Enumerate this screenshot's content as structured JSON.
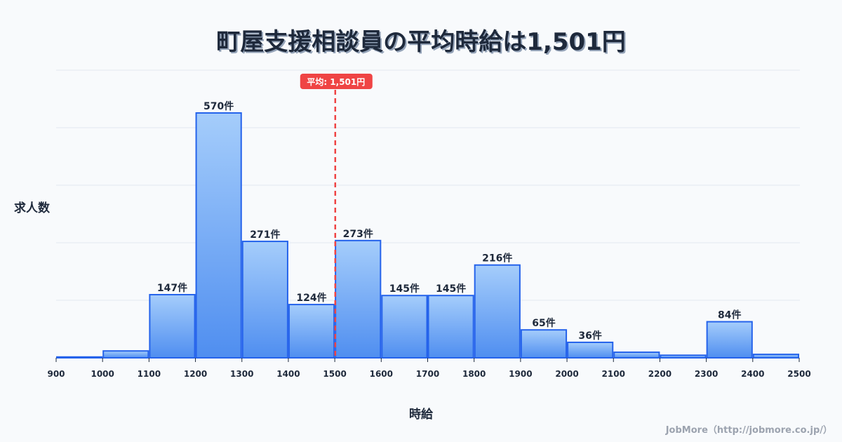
{
  "title": "町屋支援相談員の平均時給は1,501円",
  "credit": "JobMore（http://jobmore.co.jp/）",
  "chart_data": {
    "type": "bar",
    "title": "町屋支援相談員の平均時給は1,501円",
    "xlabel": "時給",
    "ylabel": "求人数",
    "bin_edges": [
      900,
      1000,
      1100,
      1200,
      1300,
      1400,
      1500,
      1600,
      1700,
      1800,
      1900,
      2000,
      2100,
      2200,
      2300,
      2400,
      2500
    ],
    "categories": [
      "900-1000",
      "1000-1100",
      "1100-1200",
      "1200-1300",
      "1300-1400",
      "1400-1500",
      "1500-1600",
      "1600-1700",
      "1700-1800",
      "1800-1900",
      "1900-2000",
      "2000-2100",
      "2100-2200",
      "2200-2300",
      "2300-2400",
      "2400-2500"
    ],
    "values": [
      2,
      16,
      147,
      570,
      271,
      124,
      273,
      145,
      145,
      216,
      65,
      36,
      13,
      6,
      84,
      8
    ],
    "labels": [
      "",
      "",
      "147件",
      "570件",
      "271件",
      "124件",
      "273件",
      "145件",
      "145件",
      "216件",
      "65件",
      "36件",
      "",
      "",
      "84件",
      ""
    ],
    "x_ticks": [
      "900",
      "1000",
      "1100",
      "1200",
      "1300",
      "1400",
      "1500",
      "1600",
      "1700",
      "1800",
      "1900",
      "2000",
      "2100",
      "2200",
      "2300",
      "2400",
      "2500"
    ],
    "mean": 1501,
    "mean_label": "平均: 1,501円",
    "grid": true,
    "colors": {
      "bar_top": "#a5cdfb",
      "bar_bottom": "#4f8ef0",
      "bar_border": "#2563eb",
      "mean_line": "#ef4444"
    }
  }
}
